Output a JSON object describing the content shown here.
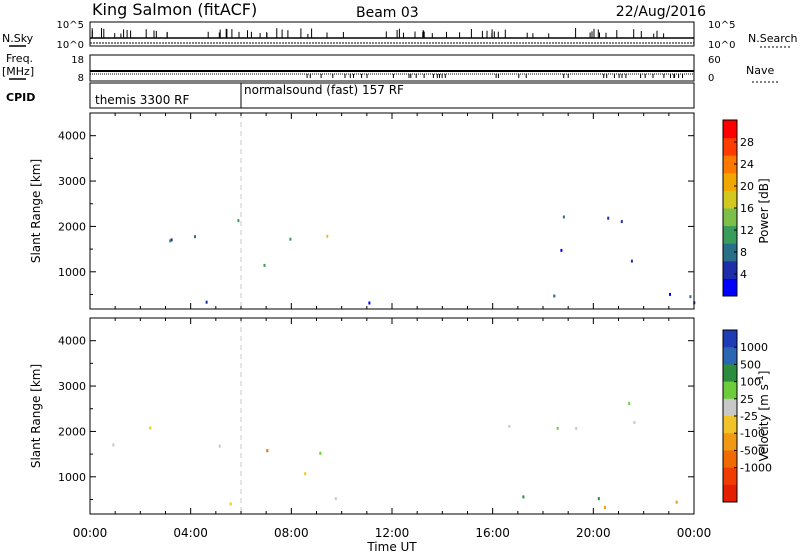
{
  "header": {
    "station": "King Salmon (fitACF)",
    "beam": "Beam 03",
    "date": "22/Aug/2016"
  },
  "sky_panel": {
    "left_label": "N.Sky",
    "right_label": "N.Search",
    "left_ticks": [
      "10^5",
      "10^0"
    ],
    "right_ticks": [
      "10^5",
      "10^0"
    ]
  },
  "freq_panel": {
    "left_label": "Freq.",
    "left_unit": "[MHz]",
    "right_label": "Nave",
    "left_ticks": [
      "18",
      "8"
    ],
    "right_ticks": [
      "60",
      "0"
    ]
  },
  "cpid_panel": {
    "label": "CPID",
    "modes": [
      {
        "name": "themis 3300 RF",
        "start_hour": 0,
        "end_hour": 6
      },
      {
        "name": "normalsound (fast) 157 RF",
        "start_hour": 6,
        "end_hour": 24
      }
    ]
  },
  "chart_data": [
    {
      "type": "heatmap",
      "name": "power",
      "ylabel": "Slant Range [km]",
      "xlim": [
        0,
        24
      ],
      "ylim": [
        180,
        4500
      ],
      "y_ticks": [
        1000,
        2000,
        3000,
        4000
      ],
      "x_ticks": [
        "00:00",
        "04:00",
        "08:00",
        "12:00",
        "16:00",
        "20:00",
        "00:00"
      ],
      "colorbar": {
        "label": "Power [dB]",
        "ticks": [
          "4",
          "8",
          "12",
          "16",
          "20",
          "24",
          "28"
        ],
        "colors": [
          "#0000ff",
          "#1e2ea8",
          "#2a6f8a",
          "#3a9c5a",
          "#7cc04a",
          "#d2c820",
          "#f0a800",
          "#ff7800",
          "#ff3c00",
          "#ff0000"
        ]
      },
      "regions": [
        {
          "x0": 0.2,
          "x1": 6.0,
          "y0": 1600,
          "y1": 2400,
          "level": "low-mid"
        },
        {
          "x0": 2.5,
          "x1": 6.3,
          "y0": 1750,
          "y1": 2250,
          "level": "mid"
        },
        {
          "x0": 6.2,
          "x1": 10.5,
          "y0": 900,
          "y1": 1800,
          "level": "mid-high"
        },
        {
          "x0": 0.0,
          "x1": 24.0,
          "y0": 200,
          "y1": 550,
          "level": "low"
        },
        {
          "x0": 16.5,
          "x1": 22.0,
          "y0": 1200,
          "y1": 2600,
          "level": "low"
        },
        {
          "x0": 21.5,
          "x1": 24.0,
          "y0": 1000,
          "y1": 1200,
          "level": "low"
        }
      ]
    },
    {
      "type": "heatmap",
      "name": "velocity",
      "ylabel": "Slant Range [km]",
      "xlabel": "Time UT",
      "xlim": [
        0,
        24
      ],
      "ylim": [
        180,
        4500
      ],
      "y_ticks": [
        1000,
        2000,
        3000,
        4000
      ],
      "x_ticks": [
        "00:00",
        "04:00",
        "08:00",
        "12:00",
        "16:00",
        "20:00",
        "00:00"
      ],
      "colorbar": {
        "label": "Velocity [m s^-1]",
        "ticks": [
          "1000",
          "500",
          "100",
          "25",
          "-25",
          "-100",
          "-500",
          "-1000"
        ],
        "colors": [
          "#1e3cb4",
          "#2a66b4",
          "#2a8c3c",
          "#6ccc3c",
          "#c8c8c8",
          "#f0c428",
          "#f09a14",
          "#f06a00",
          "#f03c00",
          "#e61e00"
        ]
      },
      "regions": [
        {
          "x0": 0.2,
          "x1": 6.0,
          "y0": 1600,
          "y1": 2400,
          "level": "near-zero"
        },
        {
          "x0": 6.2,
          "x1": 10.5,
          "y0": 900,
          "y1": 1800,
          "level": "negative"
        },
        {
          "x0": 0.0,
          "x1": 24.0,
          "y0": 200,
          "y1": 550,
          "level": "mixed"
        },
        {
          "x0": 16.5,
          "x1": 22.0,
          "y0": 1200,
          "y1": 2600,
          "level": "near-zero"
        },
        {
          "x0": 21.5,
          "x1": 24.0,
          "y0": 1000,
          "y1": 1200,
          "level": "near-zero"
        }
      ]
    }
  ]
}
